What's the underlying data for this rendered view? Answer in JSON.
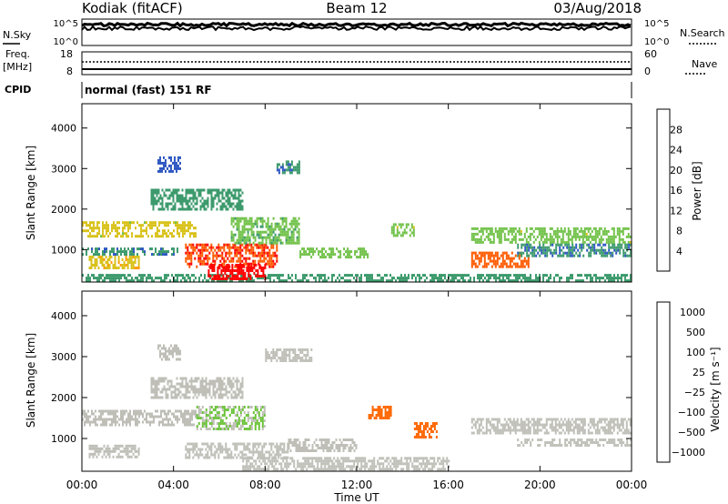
{
  "header": {
    "station": "Kodiak (fitACF)",
    "beam": "Beam 12",
    "date": "03/Aug/2018"
  },
  "status_panels": {
    "nsky_label": "N.Sky",
    "nsky_ticks": [
      "10^5",
      "10^0"
    ],
    "nsearch_label": "N.Search",
    "nsearch_ticks": [
      "10^5",
      "10^0"
    ],
    "freq_label_1": "Freq.",
    "freq_label_2": "[MHz]",
    "freq_ticks": [
      "18",
      "8"
    ],
    "nave_label": "Nave",
    "nave_ticks": [
      "60",
      "0"
    ],
    "cpid_label": "CPID",
    "cpid_value": "normal (fast) 151 RF"
  },
  "x_axis": {
    "label": "Time UT",
    "ticks": [
      "00:00",
      "04:00",
      "08:00",
      "12:00",
      "16:00",
      "20:00",
      "00:00"
    ],
    "range_hours": [
      0,
      24
    ]
  },
  "colors": {
    "frame": "#000000",
    "background": "#ffffff"
  },
  "chart_data": [
    {
      "type": "heatmap",
      "ylabel": "Slant Range [km]",
      "yticks": [
        "1000",
        "2000",
        "3000",
        "4000"
      ],
      "ylim": [
        200,
        4600
      ],
      "colorbar_label": "Power [dB]",
      "colorbar_ticks": [
        "4",
        "8",
        "12",
        "16",
        "20",
        "24",
        "28"
      ],
      "colorbar_range": [
        0,
        30
      ],
      "colorbar_colors": [
        "#0000ff",
        "#2e58c2",
        "#3c9a6c",
        "#72c24a",
        "#d9c21c",
        "#ff9900",
        "#ff5a00",
        "#ff0000"
      ],
      "regions": [
        {
          "t0": 0.0,
          "t1": 5.0,
          "r0": 1300,
          "r1": 1700,
          "level": 16
        },
        {
          "t0": 0.3,
          "t1": 2.5,
          "r0": 550,
          "r1": 850,
          "level": 18
        },
        {
          "t0": 0.0,
          "t1": 4.2,
          "r0": 850,
          "r1": 1050,
          "level": 8
        },
        {
          "t0": 0.0,
          "t1": 24.0,
          "r0": 200,
          "r1": 400,
          "level": 10
        },
        {
          "t0": 3.0,
          "t1": 7.0,
          "r0": 2000,
          "r1": 2500,
          "level": 10
        },
        {
          "t0": 4.5,
          "t1": 8.5,
          "r0": 550,
          "r1": 1150,
          "level": 26
        },
        {
          "t0": 5.5,
          "t1": 8.0,
          "r0": 250,
          "r1": 650,
          "level": 28
        },
        {
          "t0": 6.5,
          "t1": 9.5,
          "r0": 1150,
          "r1": 1800,
          "level": 12
        },
        {
          "t0": 3.3,
          "t1": 4.3,
          "r0": 2900,
          "r1": 3300,
          "level": 6
        },
        {
          "t0": 8.5,
          "t1": 9.5,
          "r0": 2900,
          "r1": 3200,
          "level": 8
        },
        {
          "t0": 9.5,
          "t1": 12.5,
          "r0": 800,
          "r1": 1050,
          "level": 14
        },
        {
          "t0": 13.5,
          "t1": 14.5,
          "r0": 1350,
          "r1": 1650,
          "level": 14
        },
        {
          "t0": 17.0,
          "t1": 24.0,
          "r0": 1200,
          "r1": 1550,
          "level": 14
        },
        {
          "t0": 17.0,
          "t1": 19.5,
          "r0": 550,
          "r1": 950,
          "level": 24
        },
        {
          "t0": 19.0,
          "t1": 24.0,
          "r0": 850,
          "r1": 1150,
          "level": 8
        }
      ]
    },
    {
      "type": "heatmap",
      "ylabel": "Slant Range [km]",
      "yticks": [
        "1000",
        "2000",
        "3000",
        "4000"
      ],
      "ylim": [
        200,
        4600
      ],
      "colorbar_label": "Velocity [m s⁻¹]",
      "colorbar_ticks": [
        "1000",
        "500",
        "100",
        "25",
        "−25",
        "−100",
        "−500",
        "−1000"
      ],
      "colorbar_range": [
        -1200,
        1200
      ],
      "colorbar_colors": [
        "#2244bb",
        "#3a7a56",
        "#6cc43a",
        "#bfbfb8",
        "#bfbfb8",
        "#ffaa22",
        "#ff6600",
        "#ff1a00"
      ],
      "regions": [
        {
          "t0": 0.0,
          "t1": 5.0,
          "r0": 1300,
          "r1": 1700,
          "level": 0
        },
        {
          "t0": 0.3,
          "t1": 2.5,
          "r0": 550,
          "r1": 850,
          "level": 0
        },
        {
          "t0": 3.0,
          "t1": 7.0,
          "r0": 2000,
          "r1": 2500,
          "level": 0
        },
        {
          "t0": 3.3,
          "t1": 4.3,
          "r0": 2900,
          "r1": 3300,
          "level": -200
        },
        {
          "t0": 5.0,
          "t1": 8.0,
          "r0": 1200,
          "r1": 1800,
          "level": -300
        },
        {
          "t0": 4.5,
          "t1": 9.0,
          "r0": 500,
          "r1": 900,
          "level": 60
        },
        {
          "t0": 8.0,
          "t1": 10.0,
          "r0": 2900,
          "r1": 3200,
          "level": 0
        },
        {
          "t0": 9.0,
          "t1": 12.0,
          "r0": 700,
          "r1": 1000,
          "level": 0
        },
        {
          "t0": 12.5,
          "t1": 13.5,
          "r0": 1500,
          "r1": 1800,
          "level": 800
        },
        {
          "t0": 14.5,
          "t1": 15.5,
          "r0": 1000,
          "r1": 1400,
          "level": 800
        },
        {
          "t0": 17.0,
          "t1": 24.0,
          "r0": 1100,
          "r1": 1500,
          "level": 0
        },
        {
          "t0": 19.0,
          "t1": 24.0,
          "r0": 800,
          "r1": 1000,
          "level": 0
        },
        {
          "t0": 7.0,
          "t1": 16.0,
          "r0": 200,
          "r1": 550,
          "level": 50
        }
      ]
    }
  ]
}
